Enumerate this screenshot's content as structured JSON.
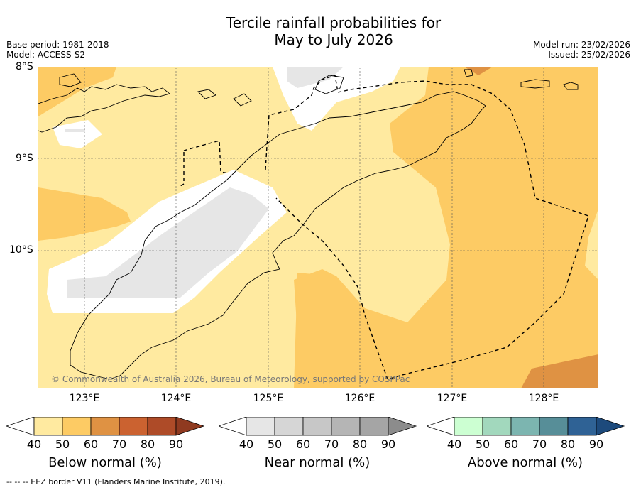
{
  "title_line1": "Tercile rainfall probabilities for",
  "title_line2": "May to July 2026",
  "base_period": "Base period: 1981-2018",
  "model": "Model: ACCESS-S2",
  "model_run": "Model run: 23/02/2026",
  "issued": "Issued: 25/02/2026",
  "lat_labels": [
    "8°S",
    "9°S",
    "10°S"
  ],
  "lon_labels": [
    "123°E",
    "124°E",
    "125°E",
    "126°E",
    "127°E",
    "128°E"
  ],
  "copyright": "© Commonwealth of Australia 2026, Bureau of Meteorology, supported by COSPPac",
  "footer": "--  --  -- EEZ border V11 (Flanders Marine Institute, 2019).",
  "colorbars": [
    {
      "name": "below-normal",
      "title": "Below normal (%)",
      "ticks": [
        "40",
        "50",
        "60",
        "70",
        "80",
        "90"
      ],
      "colors": [
        "#ffeaa0",
        "#fdcb64",
        "#df9243",
        "#cb6230",
        "#ae4b28",
        "#8f3a20"
      ]
    },
    {
      "name": "near-normal",
      "title": "Near normal (%)",
      "ticks": [
        "40",
        "50",
        "60",
        "70",
        "80",
        "90"
      ],
      "colors": [
        "#e6e6e6",
        "#d6d6d6",
        "#c7c7c7",
        "#b5b5b5",
        "#a5a5a5",
        "#8c8c8c"
      ]
    },
    {
      "name": "above-normal",
      "title": "Above normal (%)",
      "ticks": [
        "40",
        "50",
        "60",
        "70",
        "80",
        "90"
      ],
      "colors": [
        "#ccffd2",
        "#a2d8bd",
        "#7cb5b0",
        "#578e98",
        "#2f6295",
        "#1d4a7c"
      ]
    }
  ]
}
